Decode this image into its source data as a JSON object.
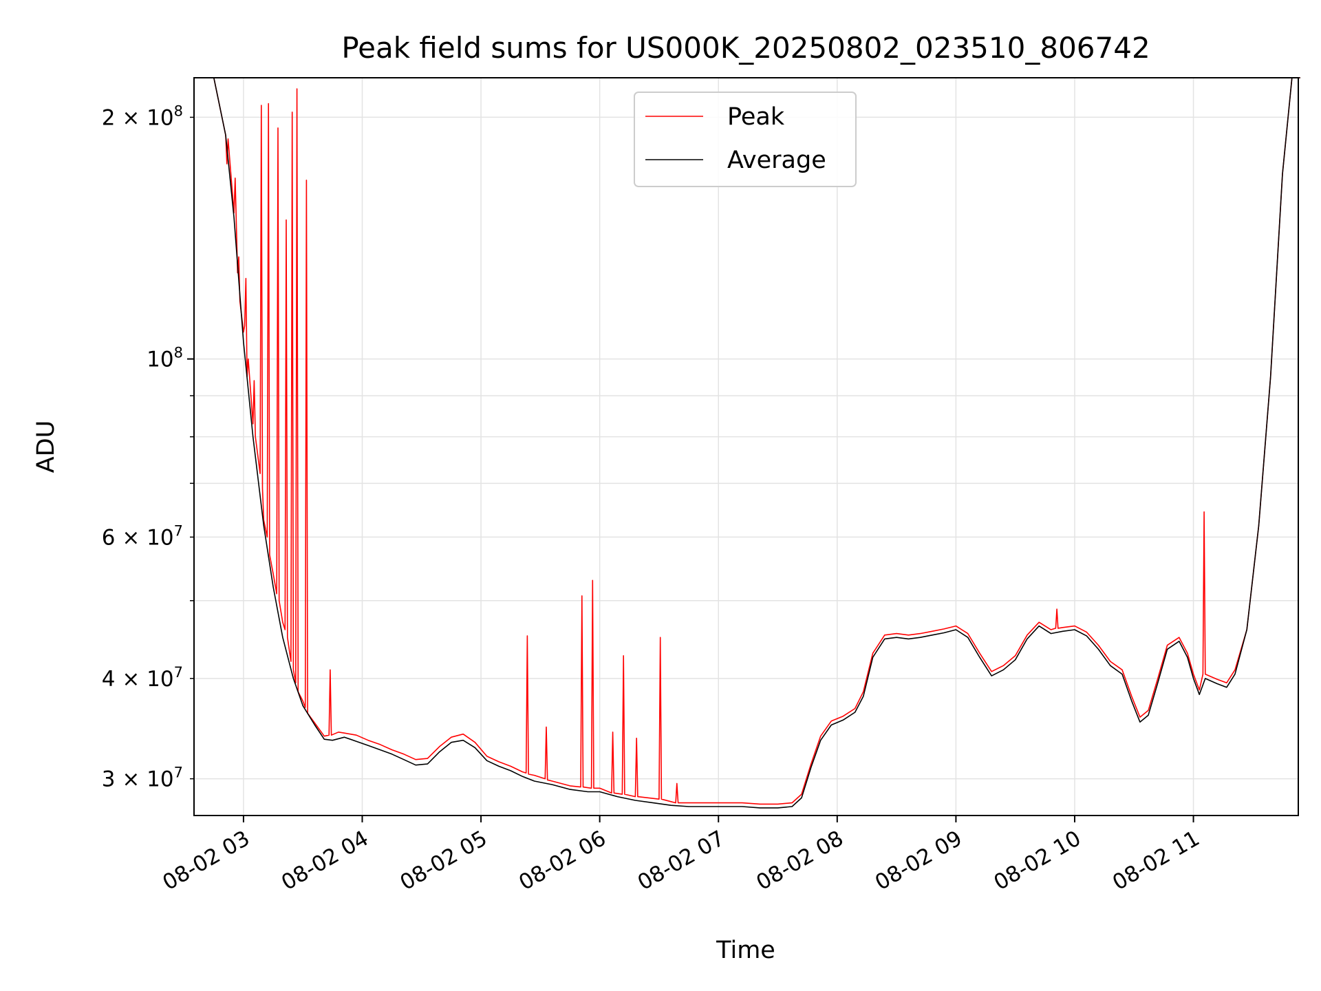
{
  "chart_data": {
    "type": "line",
    "title": "Peak field sums for US000K_20250802_023510_806742",
    "xlabel": "Time",
    "ylabel": "ADU",
    "yscale": "log",
    "xlim": [
      "08-02 02:35",
      "08-02 11:53"
    ],
    "ylim": [
      27000000,
      224000000
    ],
    "grid": true,
    "legend_position": "top-center",
    "x_tick_labels": [
      "08-02 03",
      "08-02 04",
      "08-02 05",
      "08-02 06",
      "08-02 07",
      "08-02 08",
      "08-02 09",
      "08-02 10",
      "08-02 11"
    ],
    "y_tick_labels": [
      {
        "base": "2 × 10",
        "exp": "8",
        "value": 200000000
      },
      {
        "base": "10",
        "exp": "8",
        "value": 100000000
      },
      {
        "base": "6 × 10",
        "exp": "7",
        "value": 60000000
      },
      {
        "base": "4 × 10",
        "exp": "7",
        "value": 40000000
      },
      {
        "base": "3 × 10",
        "exp": "7",
        "value": 30000000
      }
    ],
    "x_units": "hours (fractional hour of 08-02)",
    "series": [
      {
        "name": "Average",
        "color": "#000000",
        "points": [
          [
            2.6,
            224000000
          ],
          [
            2.75,
            224000000
          ],
          [
            2.85,
            190000000
          ],
          [
            2.92,
            150000000
          ],
          [
            3.0,
            105000000
          ],
          [
            3.08,
            80000000
          ],
          [
            3.17,
            62000000
          ],
          [
            3.25,
            52000000
          ],
          [
            3.33,
            45000000
          ],
          [
            3.42,
            40000000
          ],
          [
            3.5,
            37000000
          ],
          [
            3.6,
            35000000
          ],
          [
            3.68,
            33600000
          ],
          [
            3.75,
            33500000
          ],
          [
            3.85,
            33800000
          ],
          [
            3.95,
            33400000
          ],
          [
            4.05,
            33000000
          ],
          [
            4.15,
            32600000
          ],
          [
            4.25,
            32200000
          ],
          [
            4.35,
            31700000
          ],
          [
            4.45,
            31200000
          ],
          [
            4.55,
            31300000
          ],
          [
            4.65,
            32400000
          ],
          [
            4.75,
            33300000
          ],
          [
            4.85,
            33500000
          ],
          [
            4.95,
            32800000
          ],
          [
            5.05,
            31600000
          ],
          [
            5.15,
            31100000
          ],
          [
            5.25,
            30700000
          ],
          [
            5.35,
            30200000
          ],
          [
            5.45,
            29800000
          ],
          [
            5.6,
            29500000
          ],
          [
            5.75,
            29100000
          ],
          [
            5.9,
            28900000
          ],
          [
            6.0,
            28900000
          ],
          [
            6.15,
            28500000
          ],
          [
            6.3,
            28200000
          ],
          [
            6.45,
            28000000
          ],
          [
            6.6,
            27800000
          ],
          [
            6.75,
            27700000
          ],
          [
            6.9,
            27700000
          ],
          [
            7.05,
            27700000
          ],
          [
            7.2,
            27700000
          ],
          [
            7.35,
            27600000
          ],
          [
            7.5,
            27600000
          ],
          [
            7.62,
            27700000
          ],
          [
            7.7,
            28400000
          ],
          [
            7.78,
            31000000
          ],
          [
            7.86,
            33500000
          ],
          [
            7.95,
            35000000
          ],
          [
            8.05,
            35500000
          ],
          [
            8.15,
            36300000
          ],
          [
            8.22,
            38000000
          ],
          [
            8.3,
            42500000
          ],
          [
            8.4,
            44800000
          ],
          [
            8.5,
            45000000
          ],
          [
            8.6,
            44800000
          ],
          [
            8.7,
            45000000
          ],
          [
            8.8,
            45300000
          ],
          [
            8.9,
            45600000
          ],
          [
            9.0,
            46000000
          ],
          [
            9.1,
            45000000
          ],
          [
            9.2,
            42500000
          ],
          [
            9.3,
            40300000
          ],
          [
            9.4,
            41000000
          ],
          [
            9.5,
            42200000
          ],
          [
            9.6,
            44800000
          ],
          [
            9.7,
            46500000
          ],
          [
            9.8,
            45500000
          ],
          [
            9.9,
            45800000
          ],
          [
            10.0,
            46000000
          ],
          [
            10.1,
            45200000
          ],
          [
            10.2,
            43500000
          ],
          [
            10.3,
            41500000
          ],
          [
            10.4,
            40500000
          ],
          [
            10.48,
            37500000
          ],
          [
            10.55,
            35300000
          ],
          [
            10.62,
            36000000
          ],
          [
            10.7,
            39500000
          ],
          [
            10.78,
            43500000
          ],
          [
            10.88,
            44500000
          ],
          [
            10.95,
            42500000
          ],
          [
            11.0,
            40000000
          ],
          [
            11.05,
            38200000
          ],
          [
            11.1,
            40000000
          ],
          [
            11.2,
            39400000
          ],
          [
            11.28,
            39000000
          ],
          [
            11.35,
            40500000
          ],
          [
            11.45,
            46000000
          ],
          [
            11.55,
            62000000
          ],
          [
            11.65,
            95000000
          ],
          [
            11.75,
            170000000
          ],
          [
            11.83,
            224000000
          ],
          [
            11.9,
            224000000
          ]
        ]
      },
      {
        "name": "Peak",
        "color": "#ff0000",
        "points": [
          [
            2.6,
            224000000
          ],
          [
            2.75,
            224000000
          ],
          [
            2.85,
            190000000
          ],
          [
            2.86,
            175000000
          ],
          [
            2.87,
            188000000
          ],
          [
            2.92,
            152000000
          ],
          [
            2.93,
            168000000
          ],
          [
            2.95,
            128000000
          ],
          [
            2.96,
            134000000
          ],
          [
            2.97,
            118000000
          ],
          [
            3.0,
            108000000
          ],
          [
            3.01,
            110000000
          ],
          [
            3.02,
            126000000
          ],
          [
            3.03,
            95000000
          ],
          [
            3.04,
            100000000
          ],
          [
            3.08,
            83000000
          ],
          [
            3.09,
            94000000
          ],
          [
            3.1,
            80000000
          ],
          [
            3.14,
            72000000
          ],
          [
            3.15,
            207000000
          ],
          [
            3.16,
            69000000
          ],
          [
            3.17,
            63000000
          ],
          [
            3.2,
            60000000
          ],
          [
            3.21,
            208000000
          ],
          [
            3.22,
            57000000
          ],
          [
            3.25,
            54000000
          ],
          [
            3.28,
            51000000
          ],
          [
            3.29,
            194000000
          ],
          [
            3.3,
            50000000
          ],
          [
            3.33,
            47000000
          ],
          [
            3.35,
            46000000
          ],
          [
            3.36,
            149000000
          ],
          [
            3.37,
            45000000
          ],
          [
            3.4,
            42000000
          ],
          [
            3.41,
            203000000
          ],
          [
            3.42,
            41000000
          ],
          [
            3.44,
            39500000
          ],
          [
            3.45,
            217000000
          ],
          [
            3.46,
            38500000
          ],
          [
            3.5,
            37500000
          ],
          [
            3.52,
            36800000
          ],
          [
            3.53,
            167000000
          ],
          [
            3.54,
            36200000
          ],
          [
            3.6,
            35200000
          ],
          [
            3.68,
            33900000
          ],
          [
            3.72,
            34000000
          ],
          [
            3.73,
            41000000
          ],
          [
            3.74,
            34000000
          ],
          [
            3.8,
            34300000
          ],
          [
            3.85,
            34200000
          ],
          [
            3.9,
            34100000
          ],
          [
            3.95,
            34000000
          ],
          [
            4.05,
            33500000
          ],
          [
            4.15,
            33100000
          ],
          [
            4.25,
            32600000
          ],
          [
            4.35,
            32200000
          ],
          [
            4.45,
            31700000
          ],
          [
            4.55,
            31800000
          ],
          [
            4.65,
            32900000
          ],
          [
            4.75,
            33800000
          ],
          [
            4.85,
            34100000
          ],
          [
            4.95,
            33300000
          ],
          [
            5.05,
            32000000
          ],
          [
            5.15,
            31500000
          ],
          [
            5.25,
            31100000
          ],
          [
            5.35,
            30600000
          ],
          [
            5.38,
            30500000
          ],
          [
            5.39,
            45200000
          ],
          [
            5.4,
            30400000
          ],
          [
            5.45,
            30300000
          ],
          [
            5.54,
            30000000
          ],
          [
            5.55,
            34800000
          ],
          [
            5.56,
            29900000
          ],
          [
            5.6,
            29800000
          ],
          [
            5.75,
            29400000
          ],
          [
            5.84,
            29300000
          ],
          [
            5.85,
            50700000
          ],
          [
            5.86,
            29300000
          ],
          [
            5.93,
            29200000
          ],
          [
            5.94,
            53000000
          ],
          [
            5.95,
            29200000
          ],
          [
            6.0,
            29200000
          ],
          [
            6.1,
            28800000
          ],
          [
            6.11,
            34300000
          ],
          [
            6.12,
            28800000
          ],
          [
            6.19,
            28700000
          ],
          [
            6.2,
            42700000
          ],
          [
            6.21,
            28700000
          ],
          [
            6.3,
            28500000
          ],
          [
            6.31,
            33700000
          ],
          [
            6.32,
            28500000
          ],
          [
            6.5,
            28300000
          ],
          [
            6.51,
            45000000
          ],
          [
            6.52,
            28300000
          ],
          [
            6.6,
            28100000
          ],
          [
            6.64,
            28000000
          ],
          [
            6.65,
            29600000
          ],
          [
            6.66,
            28000000
          ],
          [
            6.75,
            28000000
          ],
          [
            6.9,
            28000000
          ],
          [
            7.05,
            28000000
          ],
          [
            7.2,
            28000000
          ],
          [
            7.35,
            27900000
          ],
          [
            7.5,
            27900000
          ],
          [
            7.62,
            28000000
          ],
          [
            7.7,
            28700000
          ],
          [
            7.78,
            31300000
          ],
          [
            7.86,
            33900000
          ],
          [
            7.95,
            35400000
          ],
          [
            8.05,
            35900000
          ],
          [
            8.15,
            36700000
          ],
          [
            8.22,
            38500000
          ],
          [
            8.3,
            43000000
          ],
          [
            8.4,
            45300000
          ],
          [
            8.5,
            45500000
          ],
          [
            8.6,
            45300000
          ],
          [
            8.7,
            45500000
          ],
          [
            8.8,
            45800000
          ],
          [
            8.9,
            46100000
          ],
          [
            9.0,
            46500000
          ],
          [
            9.1,
            45500000
          ],
          [
            9.2,
            43000000
          ],
          [
            9.3,
            40800000
          ],
          [
            9.4,
            41500000
          ],
          [
            9.5,
            42700000
          ],
          [
            9.6,
            45300000
          ],
          [
            9.7,
            47000000
          ],
          [
            9.8,
            46000000
          ],
          [
            9.84,
            46200000
          ],
          [
            9.85,
            48800000
          ],
          [
            9.86,
            46200000
          ],
          [
            9.9,
            46300000
          ],
          [
            10.0,
            46500000
          ],
          [
            10.1,
            45700000
          ],
          [
            10.2,
            44000000
          ],
          [
            10.3,
            42000000
          ],
          [
            10.4,
            41000000
          ],
          [
            10.48,
            38000000
          ],
          [
            10.55,
            35800000
          ],
          [
            10.62,
            36500000
          ],
          [
            10.7,
            40000000
          ],
          [
            10.78,
            44000000
          ],
          [
            10.88,
            45000000
          ],
          [
            10.95,
            43000000
          ],
          [
            11.0,
            40500000
          ],
          [
            11.05,
            38700000
          ],
          [
            11.08,
            40500000
          ],
          [
            11.09,
            64500000
          ],
          [
            11.1,
            40500000
          ],
          [
            11.2,
            39900000
          ],
          [
            11.28,
            39500000
          ],
          [
            11.35,
            41000000
          ],
          [
            11.45,
            46000000
          ],
          [
            11.55,
            62000000
          ],
          [
            11.65,
            95000000
          ],
          [
            11.75,
            170000000
          ],
          [
            11.83,
            224000000
          ],
          [
            11.9,
            224000000
          ]
        ]
      }
    ]
  }
}
